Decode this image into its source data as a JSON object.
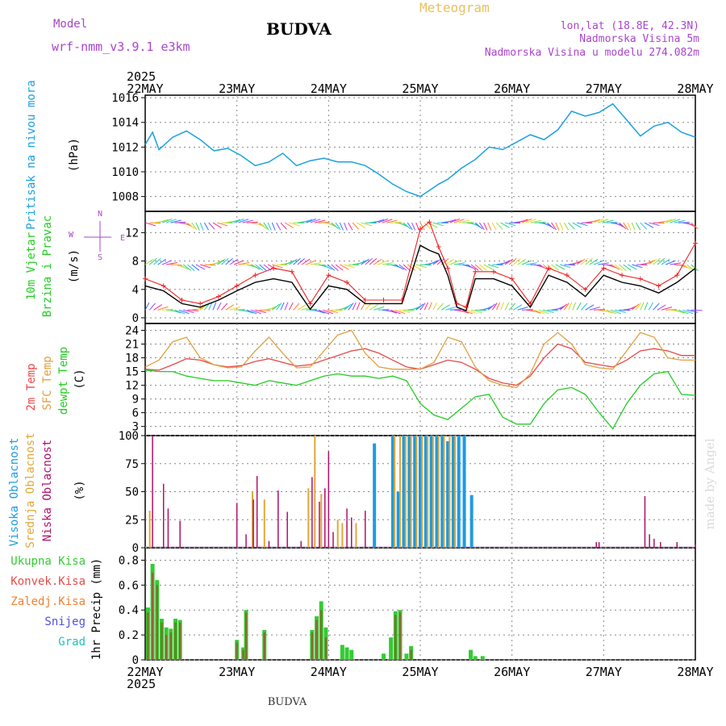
{
  "header": {
    "model_label": "Model",
    "model_name": "wrf-nmm_v3.9.1  e3km",
    "title": "BUDVA",
    "meteogram_label": "Meteogram",
    "lonlat": "lon,lat (18.8E, 42.3N)",
    "elevation": "Nadmorska Visina 5m",
    "model_elevation": "Nadmorska Visina u modelu 274.082m",
    "footer": "BUDVA",
    "watermark": "made by Angel",
    "year": "2025"
  },
  "colors": {
    "pressure": "#1aa0e0",
    "wind_speed_black": "#000000",
    "wind_speed_red": "#ee2222",
    "temp2m": "#e84848",
    "sfc": "#e0a040",
    "dewpt": "#22cc22",
    "high_cloud": "#1e9be0",
    "mid_cloud": "#e0a83a",
    "low_cloud": "#b0106a",
    "precip_total": "#33cc33",
    "precip_conv": "#e84a4a",
    "precip_frz": "#f08030",
    "snow": "#5050dd",
    "hail": "#20c0c0",
    "model": "#aa44cc",
    "meteogram": "#e8c060"
  },
  "chart_data": [
    {
      "type": "line",
      "title": "Pritisak na nivou mora",
      "ylabel": "(hPa)",
      "ylim": [
        1006.8,
        1016.2
      ],
      "yticks": [
        "1008",
        "1010",
        "1012",
        "1014",
        "1016"
      ],
      "x_start": "22MAY",
      "x_days": [
        "22MAY",
        "23MAY",
        "24MAY",
        "25MAY",
        "26MAY",
        "27MAY",
        "28MAY"
      ],
      "series": [
        {
          "name": "pressure",
          "x": [
            0,
            0.08,
            0.15,
            0.3,
            0.45,
            0.6,
            0.75,
            0.9,
            1.05,
            1.2,
            1.35,
            1.5,
            1.65,
            1.8,
            1.95,
            2.1,
            2.25,
            2.4,
            2.55,
            2.7,
            2.85,
            3.0,
            3.1,
            3.2,
            3.3,
            3.45,
            3.6,
            3.75,
            3.9,
            4.05,
            4.2,
            4.35,
            4.5,
            4.65,
            4.8,
            4.95,
            5.1,
            5.25,
            5.4,
            5.55,
            5.7,
            5.85,
            6.0
          ],
          "values": [
            1012.2,
            1013.2,
            1011.8,
            1012.8,
            1013.3,
            1012.6,
            1011.7,
            1011.9,
            1011.3,
            1010.5,
            1010.8,
            1011.5,
            1010.5,
            1010.9,
            1011.1,
            1010.8,
            1010.8,
            1010.5,
            1009.8,
            1009.0,
            1008.4,
            1008.0,
            1008.5,
            1009.0,
            1009.4,
            1010.3,
            1011.0,
            1012.0,
            1011.8,
            1012.4,
            1013.0,
            1012.6,
            1013.4,
            1014.9,
            1014.5,
            1014.8,
            1015.5,
            1014.2,
            1012.9,
            1013.7,
            1014.0,
            1013.2,
            1012.8
          ]
        }
      ]
    },
    {
      "type": "line",
      "title": "10m Vjetar Brzina i Pravac",
      "ylabel": "(m/s)",
      "ylim": [
        -0.8,
        15
      ],
      "yticks": [
        "0",
        "4",
        "8",
        "12"
      ],
      "direction_legend": "w <-|-> E",
      "series": [
        {
          "name": "mean speed",
          "x": [
            0,
            0.2,
            0.4,
            0.6,
            0.8,
            1.0,
            1.2,
            1.4,
            1.6,
            1.8,
            2.0,
            2.2,
            2.4,
            2.6,
            2.8,
            3.0,
            3.1,
            3.2,
            3.3,
            3.4,
            3.5,
            3.6,
            3.8,
            4.0,
            4.2,
            4.4,
            4.6,
            4.8,
            5.0,
            5.2,
            5.4,
            5.6,
            5.8,
            6.0
          ],
          "values": [
            4.5,
            3.8,
            2.0,
            1.5,
            2.5,
            3.8,
            5.0,
            5.5,
            5.0,
            1.2,
            4.5,
            4.0,
            2.0,
            2.0,
            2.0,
            10.2,
            9.5,
            9.0,
            6.0,
            1.5,
            1.0,
            5.5,
            5.5,
            4.5,
            1.5,
            6.0,
            5.0,
            3.0,
            6.0,
            5.0,
            4.5,
            3.5,
            5.0,
            7.0
          ]
        },
        {
          "name": "gust",
          "x": [
            0,
            0.2,
            0.4,
            0.6,
            0.8,
            1.0,
            1.2,
            1.4,
            1.6,
            1.8,
            2.0,
            2.2,
            2.4,
            2.6,
            2.8,
            3.0,
            3.1,
            3.2,
            3.3,
            3.4,
            3.5,
            3.6,
            3.8,
            4.0,
            4.2,
            4.4,
            4.6,
            4.8,
            5.0,
            5.2,
            5.4,
            5.6,
            5.8,
            6.0
          ],
          "values": [
            5.5,
            4.5,
            2.5,
            2.0,
            3.0,
            4.5,
            6.0,
            7.0,
            6.5,
            2.0,
            6.0,
            5.0,
            2.5,
            2.5,
            2.5,
            12.5,
            13.5,
            10.0,
            7.0,
            2.0,
            1.5,
            6.5,
            6.5,
            5.5,
            2.0,
            7.0,
            6.0,
            4.0,
            7.0,
            6.0,
            5.5,
            4.5,
            6.0,
            10.5
          ]
        }
      ]
    },
    {
      "type": "line",
      "title": "2m Temp / SFC Temp / dewpt Temp",
      "ylabel": "(C)",
      "ylim": [
        1.0,
        25.5
      ],
      "yticks": [
        "3",
        "6",
        "9",
        "12",
        "15",
        "18",
        "21",
        "24"
      ],
      "x": [
        0,
        0.15,
        0.3,
        0.45,
        0.6,
        0.75,
        0.9,
        1.05,
        1.2,
        1.35,
        1.5,
        1.65,
        1.8,
        1.95,
        2.1,
        2.25,
        2.4,
        2.55,
        2.7,
        2.85,
        3.0,
        3.15,
        3.3,
        3.45,
        3.6,
        3.75,
        3.9,
        4.05,
        4.2,
        4.35,
        4.5,
        4.65,
        4.8,
        4.95,
        5.1,
        5.25,
        5.4,
        5.55,
        5.7,
        5.85,
        6.0
      ],
      "series": [
        {
          "name": "2m Temp",
          "values": [
            15.5,
            15.3,
            16.5,
            17.8,
            17.5,
            16.5,
            16.0,
            16.3,
            17.2,
            17.8,
            17.0,
            16.2,
            16.5,
            17.5,
            18.5,
            19.5,
            20.0,
            19.0,
            17.5,
            16.0,
            15.5,
            16.5,
            17.5,
            17.0,
            15.5,
            13.5,
            12.5,
            12.0,
            14.0,
            18.0,
            21.0,
            20.0,
            17.0,
            16.5,
            16.0,
            17.5,
            19.5,
            20.0,
            19.5,
            18.5,
            18.5
          ]
        },
        {
          "name": "SFC Temp",
          "values": [
            16.0,
            17.5,
            21.5,
            22.5,
            18.0,
            16.5,
            15.8,
            16.0,
            19.5,
            22.5,
            19.0,
            15.8,
            16.0,
            19.5,
            23.0,
            24.0,
            19.0,
            16.0,
            15.5,
            15.5,
            15.5,
            17.0,
            22.5,
            21.5,
            16.0,
            13.0,
            12.0,
            11.5,
            14.5,
            21.0,
            23.5,
            21.0,
            16.5,
            15.8,
            15.5,
            19.5,
            23.5,
            22.5,
            18.0,
            17.5,
            17.5
          ]
        },
        {
          "name": "dewpt Temp",
          "values": [
            15.3,
            15.0,
            15.0,
            14.0,
            13.5,
            13.0,
            13.0,
            12.5,
            12.0,
            13.0,
            12.5,
            12.0,
            13.0,
            14.0,
            14.5,
            14.0,
            14.0,
            13.5,
            14.0,
            13.0,
            8.0,
            5.5,
            4.5,
            7.0,
            9.5,
            10.0,
            5.0,
            3.5,
            3.5,
            8.0,
            11.0,
            11.5,
            10.0,
            6.0,
            2.5,
            8.0,
            12.0,
            14.5,
            15.0,
            10.0,
            9.8
          ]
        }
      ]
    },
    {
      "type": "bar",
      "title": "Visoka / Srednja / Niska Oblacnost",
      "ylabel": "(%)",
      "ylim": [
        0,
        100
      ],
      "yticks": [
        "0",
        "25",
        "50",
        "75",
        "100"
      ],
      "series": [
        {
          "name": "Niska Oblacnost",
          "x": [
            0.08,
            0.2,
            0.25,
            0.38,
            1.0,
            1.1,
            1.18,
            1.22,
            1.35,
            1.45,
            1.55,
            1.7,
            1.82,
            1.9,
            1.96,
            2.0,
            2.05,
            2.2,
            2.25,
            2.4,
            5.5,
            5.55,
            5.62,
            6.0,
            4.92,
            4.95,
            5.45,
            5.8
          ],
          "values": [
            100,
            57,
            35,
            24,
            40,
            12,
            43,
            64,
            6,
            51,
            32,
            6,
            63,
            41,
            53,
            86,
            14,
            35,
            27,
            33,
            12,
            8,
            5,
            3,
            5,
            5,
            46,
            5
          ],
          "extra_note": "magenta ticks"
        },
        {
          "name": "Srednja Oblacnost",
          "x": [
            0.05,
            1.17,
            1.3,
            1.78,
            1.85,
            1.92,
            2.1,
            2.15,
            2.3,
            2.72,
            2.78,
            2.84,
            2.9,
            2.96,
            3.02,
            3.08,
            3.14,
            3.2,
            3.26,
            3.32,
            3.38
          ],
          "values": [
            33,
            50,
            43,
            53,
            100,
            48,
            25,
            22,
            22,
            100,
            100,
            100,
            100,
            100,
            100,
            100,
            100,
            100,
            100,
            100,
            100
          ]
        },
        {
          "name": "Visoka Oblacnost",
          "x": [
            2.5,
            2.7,
            2.76,
            2.82,
            2.88,
            2.94,
            3.0,
            3.06,
            3.12,
            3.18,
            3.24,
            3.3,
            3.36,
            3.42,
            3.48,
            3.56
          ],
          "values": [
            93,
            100,
            50,
            100,
            100,
            100,
            100,
            100,
            100,
            100,
            100,
            95,
            100,
            100,
            100,
            47
          ]
        }
      ]
    },
    {
      "type": "bar",
      "title": "1hr Precip",
      "ylabel": "1hr Precip (mm)",
      "ylim": [
        0,
        0.9
      ],
      "yticks": [
        "0",
        "0.2",
        "0.4",
        "0.6",
        "0.8"
      ],
      "legend": [
        "Ukupna Kisa",
        "Konvek.Kisa",
        "Zaledj.Kisa",
        "Snijeg",
        "Grad"
      ],
      "x_days": [
        "22MAY",
        "23MAY",
        "24MAY",
        "25MAY",
        "26MAY",
        "27MAY",
        "28MAY"
      ],
      "series": [
        {
          "name": "Ukupna Kisa",
          "x": [
            0.03,
            0.08,
            0.13,
            0.18,
            0.23,
            0.28,
            0.33,
            0.38,
            1.0,
            1.07,
            1.1,
            1.3,
            1.82,
            1.87,
            1.92,
            1.97,
            2.15,
            2.2,
            2.25,
            2.6,
            2.68,
            2.73,
            2.78,
            2.85,
            2.9,
            3.55,
            3.6,
            3.68
          ],
          "values": [
            0.42,
            0.77,
            0.64,
            0.33,
            0.26,
            0.25,
            0.33,
            0.32,
            0.16,
            0.1,
            0.4,
            0.24,
            0.24,
            0.35,
            0.47,
            0.26,
            0.12,
            0.1,
            0.08,
            0.05,
            0.18,
            0.39,
            0.4,
            0.05,
            0.11,
            0.08,
            0.03,
            0.03
          ]
        },
        {
          "name": "Konvek.Kisa",
          "x": [
            0.03,
            0.08,
            0.13,
            0.18,
            0.23,
            0.28,
            0.33,
            0.38,
            1.0,
            1.07,
            1.1,
            1.3,
            1.82,
            1.87,
            1.92,
            1.97,
            2.73,
            2.78,
            2.9
          ],
          "values": [
            0.38,
            0.7,
            0.6,
            0.3,
            0.2,
            0.22,
            0.3,
            0.3,
            0.14,
            0.08,
            0.38,
            0.22,
            0.22,
            0.32,
            0.4,
            0.18,
            0.36,
            0.38,
            0.08
          ]
        }
      ]
    }
  ],
  "labels": {
    "pressure_label": "Pritisak na nivou mora",
    "pressure_unit": "(hPa)",
    "wind_label1": "10m Vjetar",
    "wind_label2": "Brzina i Pravac",
    "wind_unit": "(m/s)",
    "temp_label1": "2m Temp",
    "temp_label2": "SFC Temp",
    "temp_label3": "dewpt Temp",
    "temp_unit": "(C)",
    "cloud_label1": "Visoka Oblacnost",
    "cloud_label2": "Srednja Oblacnost",
    "cloud_label3": "Niska Oblacnost",
    "cloud_unit": "(%)",
    "precip_unit": "1hr Precip (mm)",
    "legend1": "Ukupna Kisa",
    "legend2": "Konvek.Kisa",
    "legend3": "Zaledj.Kisa",
    "legend4": "Snijeg",
    "legend5": "Grad",
    "wind_dir_top": "N",
    "wind_dir_bottom": "S",
    "wind_dir_left": "W",
    "wind_dir_right": "E"
  }
}
